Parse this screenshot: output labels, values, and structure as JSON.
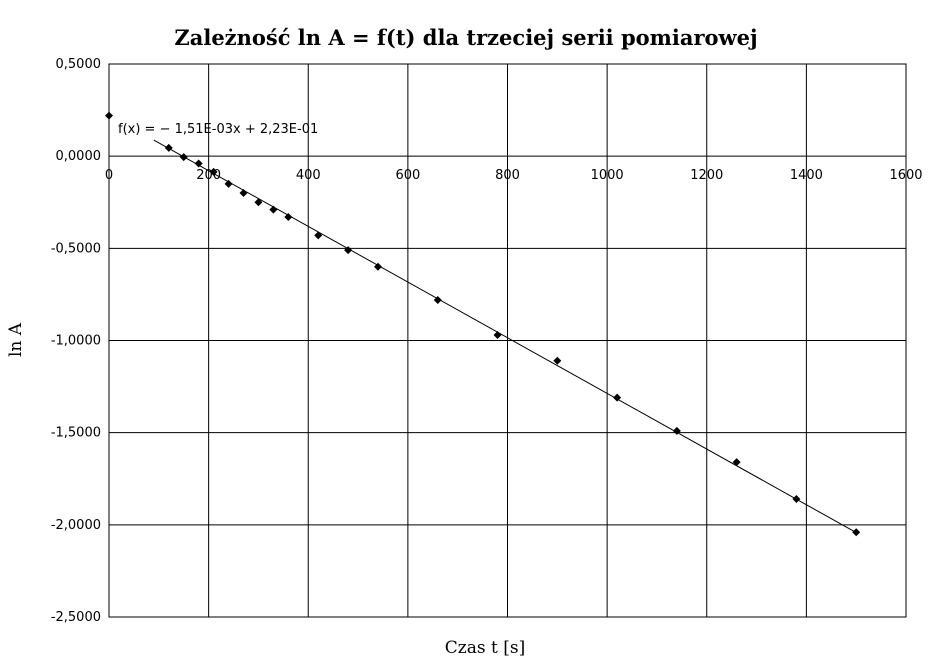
{
  "chart_data": {
    "type": "scatter",
    "title": "Zależność ln A = f(t) dla trzeciej serii pomiarowej",
    "xlabel": "Czas t [s]",
    "ylabel": "ln A",
    "xlim": [
      0,
      1600
    ],
    "ylim": [
      -2.5,
      0.5
    ],
    "x_ticks": [
      0,
      200,
      400,
      600,
      800,
      1000,
      1200,
      1400,
      1600
    ],
    "x_tick_labels": [
      "0",
      "200",
      "400",
      "600",
      "800",
      "1000",
      "1200",
      "1400",
      "1600"
    ],
    "y_ticks": [
      0.5,
      0,
      -0.5,
      -1,
      -1.5,
      -2,
      -2.5
    ],
    "y_tick_labels": [
      "0,5000",
      "0,0000",
      "-0,5000",
      "-1,0000",
      "-1,5000",
      "-2,0000",
      "-2,5000"
    ],
    "grid": true,
    "series": [
      {
        "points": [
          {
            "x": 0,
            "y": 0.22
          },
          {
            "x": 120,
            "y": 0.045
          },
          {
            "x": 150,
            "y": -0.005
          },
          {
            "x": 180,
            "y": -0.04
          },
          {
            "x": 210,
            "y": -0.085
          },
          {
            "x": 240,
            "y": -0.15
          },
          {
            "x": 270,
            "y": -0.2
          },
          {
            "x": 300,
            "y": -0.25
          },
          {
            "x": 330,
            "y": -0.29
          },
          {
            "x": 360,
            "y": -0.33
          },
          {
            "x": 420,
            "y": -0.43
          },
          {
            "x": 480,
            "y": -0.51
          },
          {
            "x": 540,
            "y": -0.6
          },
          {
            "x": 660,
            "y": -0.78
          },
          {
            "x": 780,
            "y": -0.97
          },
          {
            "x": 900,
            "y": -1.11
          },
          {
            "x": 1020,
            "y": -1.31
          },
          {
            "x": 1140,
            "y": -1.49
          },
          {
            "x": 1260,
            "y": -1.66
          },
          {
            "x": 1380,
            "y": -1.86
          },
          {
            "x": 1500,
            "y": -2.04
          }
        ]
      }
    ],
    "trendline": {
      "slope": -0.00151,
      "intercept": 0.223,
      "x_range": [
        90,
        1500
      ],
      "equation_label": "f(x) = − 1,51E-03x + 2,23E-01"
    },
    "colors": {
      "marker": "#000000",
      "line": "#000000",
      "grid": "#000000"
    }
  }
}
